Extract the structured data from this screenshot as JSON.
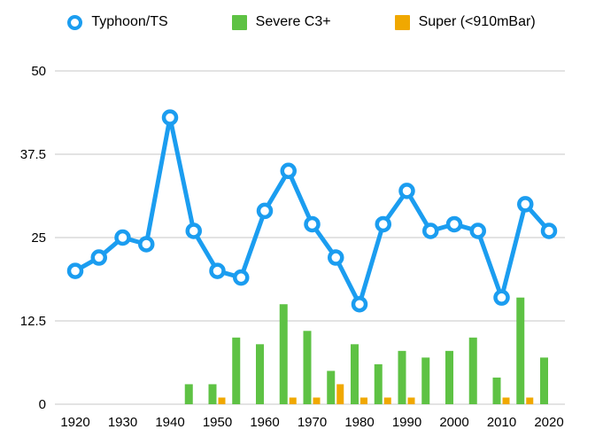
{
  "legend": {
    "items": [
      {
        "label": "Typhoon/TS",
        "color": "#1B9DF0",
        "marker": "ring"
      },
      {
        "label": "Severe C3+",
        "color": "#5EC244",
        "marker": "square"
      },
      {
        "label": "Super (<910mBar)",
        "color": "#F0A800",
        "marker": "square"
      }
    ]
  },
  "chart_data": {
    "type": "line+bar",
    "title": "",
    "xlabel": "",
    "ylabel": "",
    "grid": true,
    "legend_position": "top",
    "ylim": [
      0,
      50
    ],
    "yticks": [
      0,
      12.5,
      25,
      37.5,
      50
    ],
    "xticks": [
      1920,
      1930,
      1940,
      1950,
      1960,
      1970,
      1980,
      1990,
      2000,
      2010,
      2020
    ],
    "x": [
      1920,
      1925,
      1930,
      1935,
      1940,
      1945,
      1950,
      1955,
      1960,
      1965,
      1970,
      1975,
      1980,
      1985,
      1990,
      1995,
      2000,
      2005,
      2010,
      2015,
      2020
    ],
    "series": [
      {
        "name": "Typhoon/TS",
        "type": "line",
        "color": "#1B9DF0",
        "values": [
          20,
          22,
          25,
          24,
          43,
          26,
          20,
          19,
          29,
          35,
          27,
          22,
          15,
          27,
          32,
          26,
          27,
          26,
          16,
          30,
          26
        ]
      },
      {
        "name": "Severe C3+",
        "type": "bar",
        "color": "#5EC244",
        "values": [
          0,
          0,
          0,
          0,
          0,
          3,
          3,
          10,
          9,
          15,
          11,
          5,
          9,
          6,
          8,
          7,
          8,
          10,
          4,
          16,
          7
        ]
      },
      {
        "name": "Super (<910mBar)",
        "type": "bar",
        "color": "#F0A800",
        "values": [
          0,
          0,
          0,
          0,
          0,
          0,
          1,
          0,
          0,
          1,
          1,
          3,
          1,
          1,
          1,
          0,
          0,
          0,
          1,
          1,
          0
        ]
      }
    ]
  }
}
